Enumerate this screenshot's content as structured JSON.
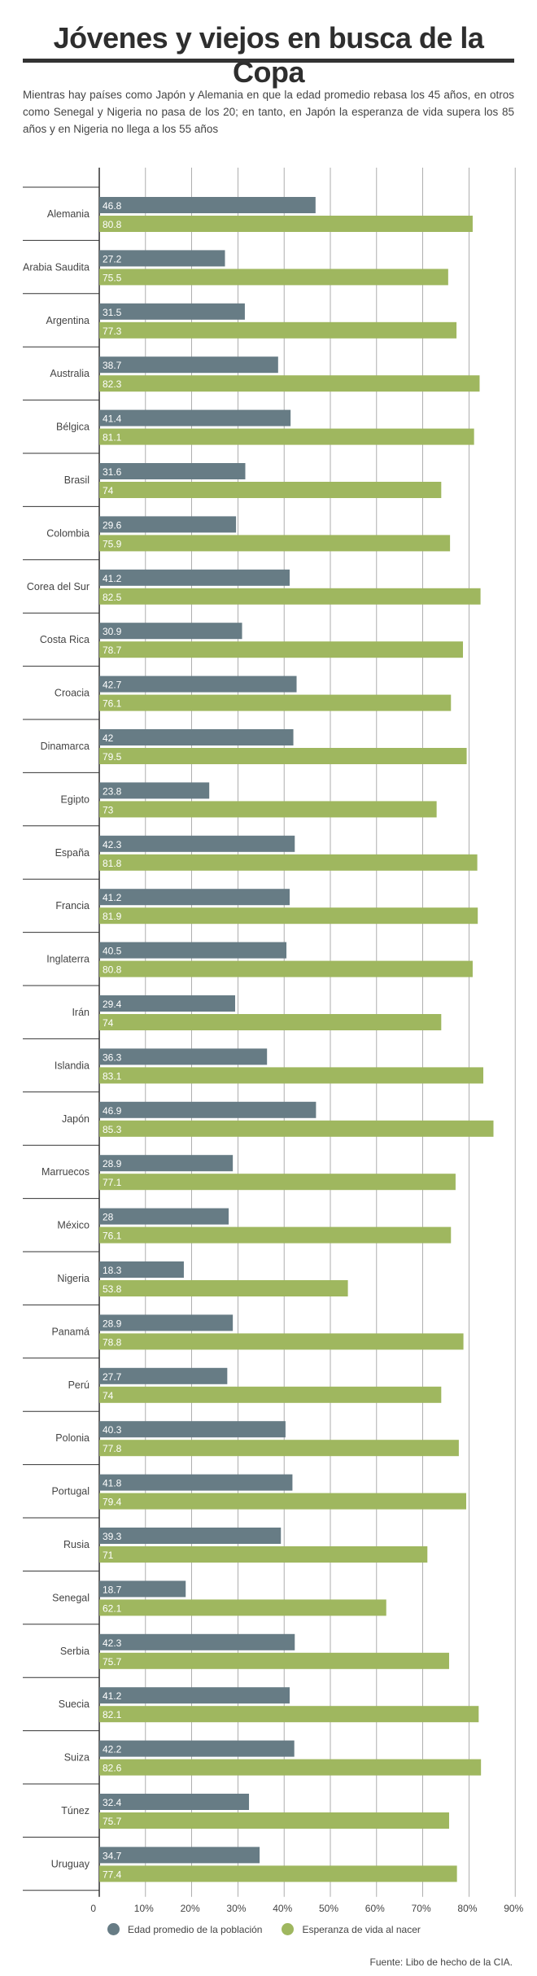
{
  "title": "Jóvenes y viejos en busca de la Copa",
  "subtitle": "Mientras hay países como Japón y Alemania en que la edad promedio rebasa los 45 años, en otros como Senegal y Nigeria no pasa de los 20; en tanto, en Japón la esperanza de vida supera los 85 años y en Nigeria no llega a los 55 años",
  "source": "Fuente: Libo de hecho de la CIA.",
  "colors": {
    "age": "#677c85",
    "life": "#9fb75f",
    "grid": "#9a9a9a",
    "text": "#444444"
  },
  "chart_data": {
    "type": "bar",
    "orientation": "horizontal",
    "categories": [
      "Alemania",
      "Arabia Saudita",
      "Argentina",
      "Australia",
      "Bélgica",
      "Brasil",
      "Colombia",
      "Corea del Sur",
      "Costa Rica",
      "Croacia",
      "Dinamarca",
      "Egipto",
      "España",
      "Francia",
      "Inglaterra",
      "Irán",
      "Islandia",
      "Japón",
      "Marruecos",
      "México",
      "Nigeria",
      "Panamá",
      "Perú",
      "Polonia",
      "Portugal",
      "Rusia",
      "Senegal",
      "Serbia",
      "Suecia",
      "Suiza",
      "Túnez",
      "Uruguay"
    ],
    "series": [
      {
        "name": "Edad promedio de la población",
        "color": "#677c85",
        "values": [
          46.8,
          27.2,
          31.5,
          38.7,
          41.4,
          31.6,
          29.6,
          41.2,
          30.9,
          42.7,
          42,
          23.8,
          42.3,
          41.2,
          40.5,
          29.4,
          36.3,
          46.9,
          28.9,
          28,
          18.3,
          28.9,
          27.7,
          40.3,
          41.8,
          39.3,
          18.7,
          42.3,
          41.2,
          42.2,
          32.4,
          34.7
        ]
      },
      {
        "name": "Esperanza de vida al nacer",
        "color": "#9fb75f",
        "values": [
          80.8,
          75.5,
          77.3,
          82.3,
          81.1,
          74,
          75.9,
          82.5,
          78.7,
          76.1,
          79.5,
          73,
          81.8,
          81.9,
          80.8,
          74,
          83.1,
          85.3,
          77.1,
          76.1,
          53.8,
          78.8,
          74,
          77.8,
          79.4,
          71,
          62.1,
          75.7,
          82.1,
          82.6,
          75.7,
          77.4
        ]
      }
    ],
    "xlim": [
      0,
      90
    ],
    "ticks": [
      0,
      10,
      20,
      30,
      40,
      50,
      60,
      70,
      80,
      90
    ],
    "tick_labels": [
      "0",
      "10%",
      "20%",
      "30%",
      "40%",
      "50%",
      "60%",
      "70%",
      "80%",
      "90%"
    ],
    "grid": true,
    "legend": "bottom"
  }
}
